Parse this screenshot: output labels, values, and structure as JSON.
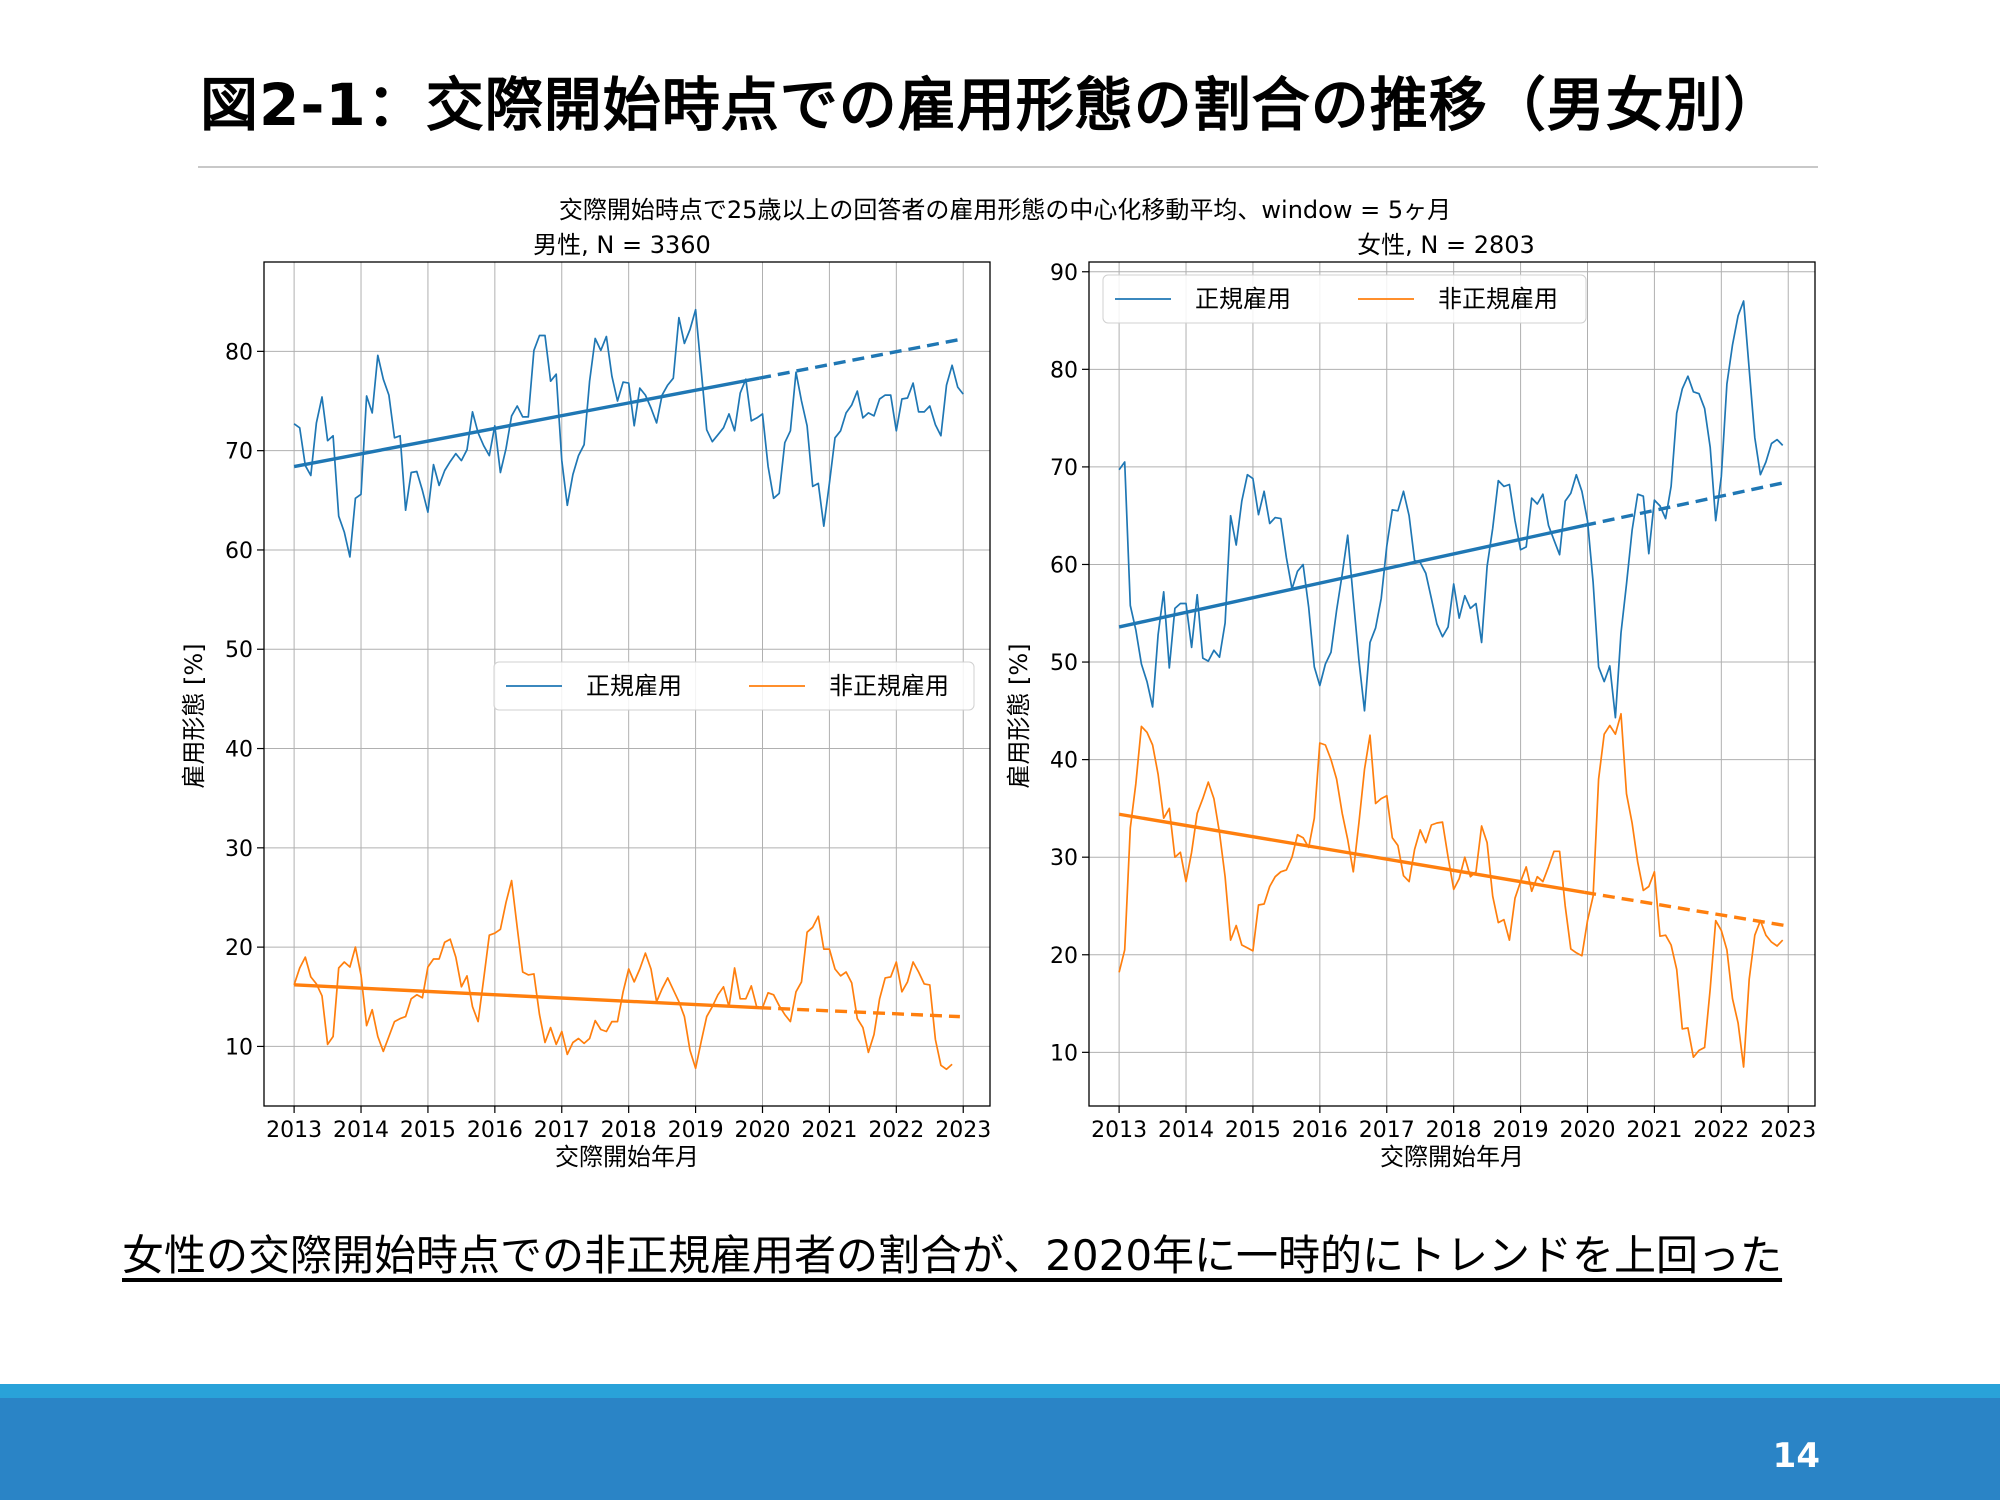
{
  "slide": {
    "title": "図2-1：交際開始時点での雇用形態の割合の推移（男女別）",
    "caption": "女性の交際開始時点での非正規雇用者の割合が、2020年に一時的にトレンドを上回った",
    "page_number": "14"
  },
  "colors": {
    "regular": "#1f77b4",
    "nonregular": "#ff7f0e",
    "footer": "#2a84c6",
    "footer_line": "#29a2d9"
  },
  "chart_data": {
    "suptitle": "交際開始時点で25歳以上の回答者の雇用形態の中心化移動平均、window = 5ヶ月",
    "panels": [
      {
        "title": "男性, N = 3360",
        "type": "line",
        "xlabel": "交際開始年月",
        "ylabel": "雇用形態 [%]",
        "xlim": [
          2012.55,
          2023.4
        ],
        "ylim": [
          4,
          89
        ],
        "xticks": [
          2013,
          2014,
          2015,
          2016,
          2017,
          2018,
          2019,
          2020,
          2021,
          2022,
          2023
        ],
        "yticks": [
          10,
          20,
          30,
          40,
          50,
          60,
          70,
          80
        ],
        "grid": true,
        "legend_position": "center-right",
        "series": [
          {
            "name": "正規雇用",
            "color": "#1f77b4",
            "values": [
              72.7,
              72.3,
              68.5,
              67.5,
              72.8,
              75.4,
              71.0,
              71.5,
              63.4,
              61.8,
              59.3,
              65.2,
              65.6,
              75.5,
              73.8,
              79.6,
              77.2,
              75.6,
              71.3,
              71.5,
              64.0,
              67.8,
              67.9,
              66.0,
              63.8,
              68.6,
              66.5,
              68.0,
              68.9,
              69.7,
              69.0,
              70.1,
              73.9,
              71.8,
              70.5,
              69.5,
              72.5,
              67.8,
              70.2,
              73.5,
              74.5,
              73.4,
              73.4,
              80.1,
              81.6,
              81.6,
              77.0,
              77.7,
              69.0,
              64.5,
              67.6,
              69.5,
              70.6,
              77.0,
              81.3,
              80.1,
              81.5,
              77.5,
              75.0,
              76.9,
              76.8,
              72.5,
              76.3,
              75.6,
              74.3,
              72.8,
              75.6,
              76.6,
              77.3,
              83.4,
              80.8,
              82.2,
              84.2,
              78.1,
              72.1,
              70.9,
              71.6,
              72.3,
              73.7,
              72.0,
              75.8,
              77.2,
              73.0,
              73.3,
              73.7,
              68.4,
              65.2,
              65.7,
              70.8,
              72.0,
              77.9,
              75.0,
              72.5,
              66.4,
              66.7,
              62.4,
              66.7,
              71.3,
              72.0,
              73.8,
              74.6,
              76.0,
              73.3,
              73.8,
              73.5,
              75.2,
              75.6,
              75.6,
              72.0,
              75.2,
              75.3,
              76.8,
              73.9,
              73.9,
              74.5,
              72.6,
              71.5,
              76.6,
              78.6,
              76.4,
              75.7
            ]
          },
          {
            "name": "非正規雇用",
            "color": "#ff7f0e",
            "values": [
              16.2,
              17.9,
              19.0,
              17.0,
              16.3,
              15.1,
              10.2,
              11.0,
              17.9,
              18.5,
              18.0,
              20.0,
              17.2,
              12.1,
              13.7,
              11.0,
              9.5,
              11.0,
              12.5,
              12.8,
              13.0,
              14.8,
              15.2,
              14.9,
              18.0,
              18.8,
              18.8,
              20.5,
              20.8,
              19.0,
              16.0,
              17.1,
              14.0,
              12.5,
              16.8,
              21.2,
              21.4,
              21.8,
              24.5,
              26.7,
              22.0,
              17.5,
              17.2,
              17.3,
              13.2,
              10.4,
              11.9,
              10.2,
              11.5,
              9.2,
              10.4,
              10.8,
              10.3,
              10.8,
              12.6,
              11.7,
              11.5,
              12.5,
              12.5,
              15.5,
              17.8,
              16.5,
              17.8,
              19.4,
              17.8,
              14.5,
              15.8,
              16.9,
              15.7,
              14.5,
              13.0,
              9.6,
              7.8,
              10.5,
              13.0,
              14.0,
              15.2,
              16.0,
              14.0,
              17.9,
              14.8,
              14.8,
              16.1,
              13.9,
              13.9,
              15.4,
              15.2,
              14.1,
              13.2,
              12.5,
              15.5,
              16.5,
              21.5,
              22.0,
              23.1,
              19.8,
              19.8,
              17.8,
              17.1,
              17.5,
              16.4,
              12.8,
              11.9,
              9.4,
              11.2,
              14.8,
              16.9,
              17.0,
              18.5,
              15.5,
              16.5,
              18.5,
              17.5,
              16.3,
              16.2,
              10.7,
              8.1,
              7.7,
              8.2
            ]
          }
        ],
        "trends": [
          {
            "name": "正規雇用",
            "color": "#1f77b4",
            "x": [
              2013.0,
              2019.95,
              2022.95
            ],
            "y": [
              68.4,
              77.3,
              81.2
            ],
            "solid_until": 2019.95
          },
          {
            "name": "非正規雇用",
            "color": "#ff7f0e",
            "x": [
              2013.0,
              2019.95,
              2022.95
            ],
            "y": [
              16.2,
              13.9,
              13.0
            ],
            "solid_until": 2019.95
          }
        ]
      },
      {
        "title": "女性, N = 2803",
        "type": "line",
        "xlabel": "交際開始年月",
        "ylabel": "雇用形態 [%]",
        "xlim": [
          2012.55,
          2023.4
        ],
        "ylim": [
          4.5,
          91
        ],
        "xticks": [
          2013,
          2014,
          2015,
          2016,
          2017,
          2018,
          2019,
          2020,
          2021,
          2022,
          2023
        ],
        "yticks": [
          10,
          20,
          30,
          40,
          50,
          60,
          70,
          80,
          90
        ],
        "grid": true,
        "legend_position": "upper-left",
        "series": [
          {
            "name": "正規雇用",
            "color": "#1f77b4",
            "values": [
              69.7,
              70.5,
              55.8,
              53.3,
              49.8,
              48.0,
              45.4,
              52.8,
              57.2,
              49.4,
              55.5,
              56.0,
              56.0,
              51.5,
              56.9,
              50.4,
              50.1,
              51.2,
              50.5,
              54.0,
              65.0,
              62.0,
              66.5,
              69.2,
              68.8,
              65.1,
              67.5,
              64.2,
              64.8,
              64.7,
              60.7,
              57.5,
              59.3,
              60.0,
              55.6,
              49.5,
              47.6,
              49.8,
              51.0,
              55.3,
              59.0,
              63.0,
              56.5,
              50.2,
              45.0,
              52.0,
              53.5,
              56.5,
              61.9,
              65.6,
              65.5,
              67.5,
              65.0,
              60.4,
              60.2,
              59.1,
              56.5,
              53.9,
              52.6,
              53.6,
              58.0,
              54.5,
              56.8,
              55.5,
              56.0,
              52.0,
              59.8,
              63.7,
              68.6,
              68.0,
              68.2,
              64.5,
              61.5,
              61.8,
              66.8,
              66.2,
              67.2,
              64.0,
              62.5,
              61.0,
              66.5,
              67.3,
              69.2,
              67.5,
              64.5,
              58.2,
              49.5,
              48.0,
              49.6,
              44.3,
              53.0,
              58.0,
              63.5,
              67.2,
              67.0,
              61.1,
              66.6,
              66.0,
              64.7,
              68.0,
              75.5,
              78.0,
              79.3,
              77.7,
              77.5,
              76.0,
              72.0,
              64.5,
              69.0,
              78.5,
              82.5,
              85.5,
              87.0,
              80.0,
              73.0,
              69.2,
              70.5,
              72.4,
              72.8,
              72.2
            ]
          },
          {
            "name": "非正規雇用",
            "color": "#ff7f0e",
            "values": [
              18.2,
              20.5,
              33.0,
              37.5,
              43.4,
              42.8,
              41.5,
              38.5,
              34.0,
              35.0,
              30.0,
              30.5,
              27.5,
              30.5,
              34.5,
              36.0,
              37.7,
              36.0,
              32.5,
              28.0,
              21.5,
              23.0,
              21.0,
              20.7,
              20.4,
              25.1,
              25.2,
              27.0,
              28.0,
              28.5,
              28.7,
              30.0,
              32.3,
              32.0,
              31.0,
              34.0,
              41.7,
              41.5,
              40.0,
              38.0,
              34.5,
              31.8,
              28.5,
              33.5,
              39.0,
              42.5,
              35.5,
              36.0,
              36.3,
              32.0,
              31.2,
              28.1,
              27.5,
              30.8,
              32.8,
              31.5,
              33.3,
              33.5,
              33.6,
              30.0,
              26.7,
              27.8,
              30.0,
              28.0,
              28.5,
              33.2,
              31.5,
              26.0,
              23.3,
              23.6,
              21.5,
              25.8,
              27.5,
              29.0,
              26.5,
              28.0,
              27.5,
              29.0,
              30.6,
              30.6,
              25.0,
              20.6,
              20.2,
              19.9,
              23.5,
              26.0,
              38.0,
              42.6,
              43.5,
              42.6,
              44.7,
              36.5,
              33.5,
              29.5,
              26.6,
              27.0,
              28.5,
              21.9,
              22.0,
              21.0,
              18.5,
              12.4,
              12.5,
              9.5,
              10.2,
              10.5,
              16.5,
              23.5,
              22.5,
              20.5,
              15.5,
              13.0,
              8.5,
              17.5,
              22.0,
              23.5,
              22.0,
              21.3,
              20.9,
              21.5
            ]
          }
        ],
        "trends": [
          {
            "name": "正規雇用",
            "color": "#1f77b4",
            "x": [
              2013.0,
              2019.95,
              2022.95
            ],
            "y": [
              53.6,
              64.0,
              68.4
            ],
            "solid_until": 2019.95
          },
          {
            "name": "非正規雇用",
            "color": "#ff7f0e",
            "x": [
              2013.0,
              2019.95,
              2022.95
            ],
            "y": [
              34.4,
              26.4,
              23.0
            ],
            "solid_until": 2019.95
          }
        ]
      }
    ]
  }
}
